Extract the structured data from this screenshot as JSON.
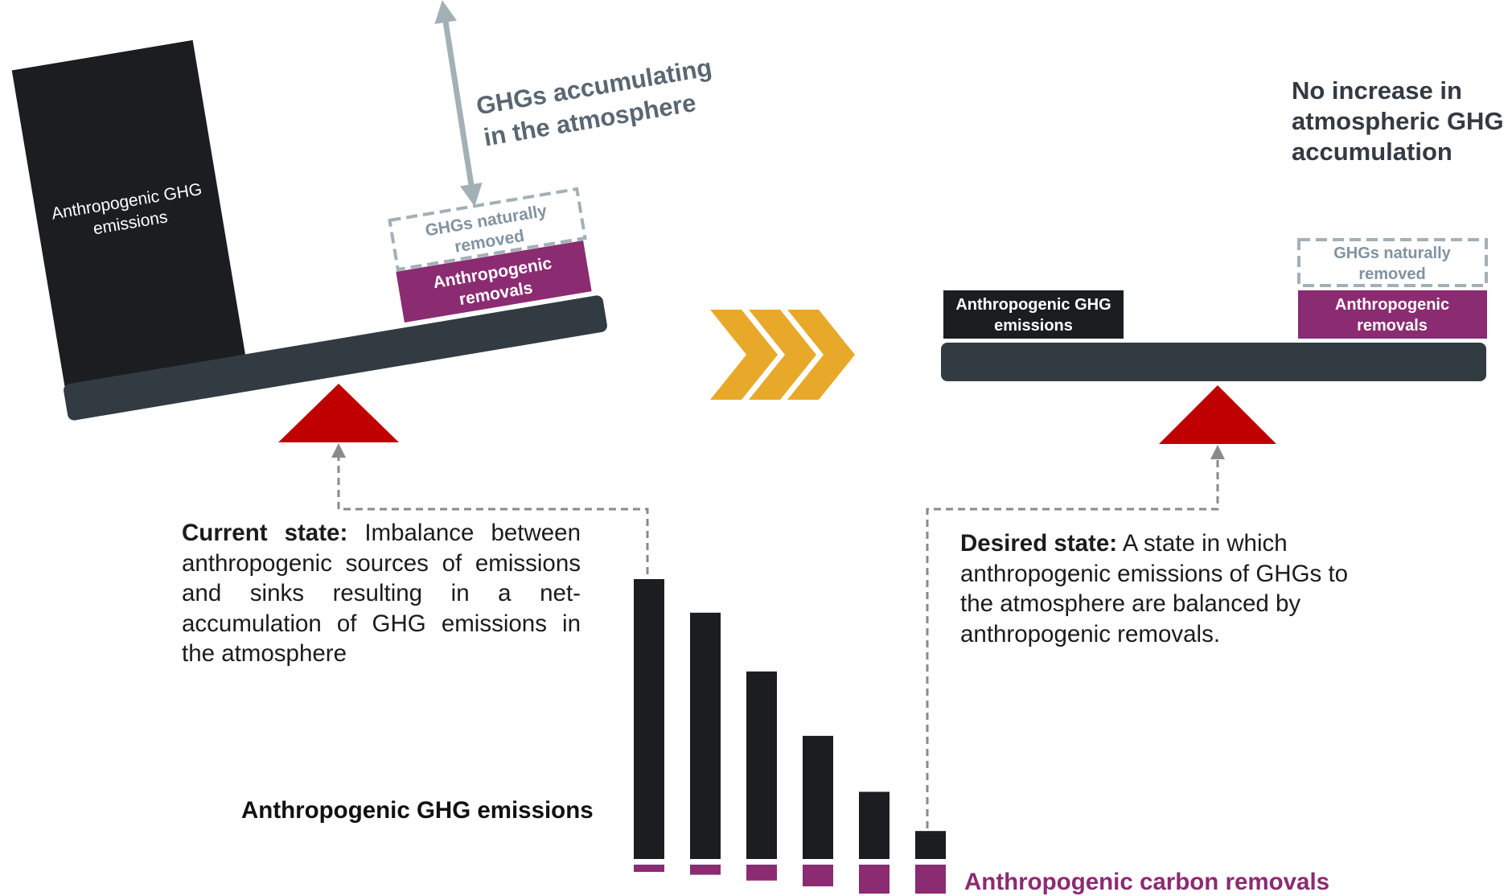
{
  "colors": {
    "emission_block": "#1b1d20",
    "removal_block": "#8b2b72",
    "beam": "#323a42",
    "fulcrum": "#c00000",
    "arrow_grey": "#a3b0b6",
    "dashed_line": "#8a8a8a",
    "chevron": "#e8a92a",
    "natural_text": "#8193a0"
  },
  "left_scale": {
    "emissions_label": "Anthropogenic GHG emissions",
    "naturally_removed_label": "GHGs naturally removed",
    "removals_label": "Anthropogenic removals",
    "accumulating_line1": "GHGs accumulating",
    "accumulating_line2": "in the atmosphere"
  },
  "right_scale": {
    "emissions_label": "Anthropogenic GHG emissions",
    "naturally_removed_label": "GHGs naturally removed",
    "removals_label": "Anthropogenic removals",
    "no_increase_label": "No increase in atmospheric GHG accumulation"
  },
  "current_state": {
    "title": "Current state:",
    "text": "Imbalance between anthropogenic sources of emissions and sinks resulting in a net-accumulation of GHG emissions in the atmosphere"
  },
  "desired_state": {
    "title": "Desired state:",
    "text": "A state in which anthropogenic emissions of GHGs to the atmosphere are balanced by anthropogenic removals."
  },
  "mini_chart": {
    "emissions_label": "Anthropogenic GHG emissions",
    "removals_label": "Anthropogenic carbon removals",
    "emissions_values": [
      100,
      88,
      67,
      44,
      24,
      10
    ],
    "removals_values": [
      2.5,
      3.5,
      5.5,
      7.5,
      10,
      10
    ]
  }
}
